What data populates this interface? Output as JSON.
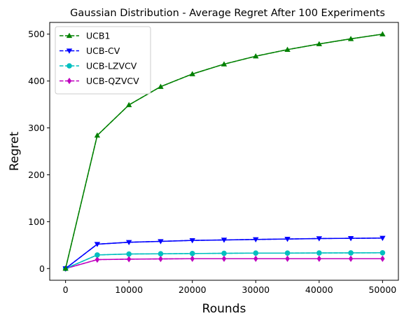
{
  "chart_data": {
    "type": "line",
    "title": "Gaussian Distribution - Average Regret After 100 Experiments",
    "xlabel": "Rounds",
    "ylabel": "Regret",
    "xlim": [
      -2500,
      52500
    ],
    "ylim": [
      -25,
      525
    ],
    "xticks": [
      0,
      10000,
      20000,
      30000,
      40000,
      50000
    ],
    "yticks": [
      0,
      100,
      200,
      300,
      400,
      500
    ],
    "grid": false,
    "legend_position": "top-left",
    "x": [
      0,
      5000,
      10000,
      15000,
      20000,
      25000,
      30000,
      35000,
      40000,
      45000,
      50000
    ],
    "series": [
      {
        "name": "UCB1",
        "color": "#008000",
        "marker": "triangle-up",
        "values": [
          0,
          284,
          349,
          388,
          415,
          436,
          453,
          467,
          479,
          490,
          500
        ]
      },
      {
        "name": "UCB-CV",
        "color": "#0000ff",
        "marker": "triangle-down",
        "values": [
          0,
          52,
          56,
          58,
          60,
          61,
          62,
          63,
          64,
          64.5,
          65
        ]
      },
      {
        "name": "UCB-LZVCV",
        "color": "#00bfbf",
        "marker": "circle",
        "values": [
          0,
          29,
          31,
          31.5,
          32,
          32.5,
          33,
          33,
          33.2,
          33.4,
          33.6
        ]
      },
      {
        "name": "UCB-QZVCV",
        "color": "#bf00bf",
        "marker": "diamond",
        "values": [
          0,
          19,
          20,
          20.5,
          21,
          21,
          21,
          21,
          21,
          21,
          21
        ]
      }
    ]
  }
}
